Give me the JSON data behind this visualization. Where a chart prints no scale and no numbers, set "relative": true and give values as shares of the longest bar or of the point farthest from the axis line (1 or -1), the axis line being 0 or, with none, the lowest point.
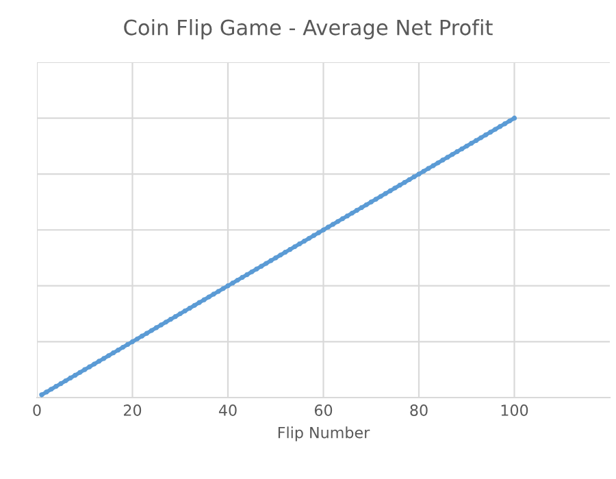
{
  "chart_data": {
    "type": "line",
    "title": "Coin Flip Game - Average Net Profit",
    "xlabel": "Flip Number",
    "relative": true,
    "tick_labels": "x",
    "x": [
      1,
      2,
      3,
      4,
      5,
      6,
      7,
      8,
      9,
      10,
      11,
      12,
      13,
      14,
      15,
      16,
      17,
      18,
      19,
      20,
      21,
      22,
      23,
      24,
      25,
      26,
      27,
      28,
      29,
      30,
      31,
      32,
      33,
      34,
      35,
      36,
      37,
      38,
      39,
      40,
      41,
      42,
      43,
      44,
      45,
      46,
      47,
      48,
      49,
      50,
      51,
      52,
      53,
      54,
      55,
      56,
      57,
      58,
      59,
      60,
      61,
      62,
      63,
      64,
      65,
      66,
      67,
      68,
      69,
      70,
      71,
      72,
      73,
      74,
      75,
      76,
      77,
      78,
      79,
      80,
      81,
      82,
      83,
      84,
      85,
      86,
      87,
      88,
      89,
      90,
      91,
      92,
      93,
      94,
      95,
      96,
      97,
      98,
      99,
      100
    ],
    "series": [
      {
        "color": "#5b9bd5",
        "values": [
          0.01,
          0.02,
          0.03,
          0.04,
          0.05,
          0.06,
          0.07,
          0.08,
          0.09,
          0.1,
          0.11,
          0.12,
          0.13,
          0.14,
          0.15,
          0.16,
          0.17,
          0.18,
          0.19,
          0.2,
          0.21,
          0.22,
          0.23,
          0.24,
          0.25,
          0.26,
          0.27,
          0.28,
          0.29,
          0.3,
          0.31,
          0.32,
          0.33,
          0.34,
          0.35,
          0.36,
          0.37,
          0.38,
          0.39,
          0.4,
          0.41,
          0.42,
          0.43,
          0.44,
          0.45,
          0.46,
          0.47,
          0.48,
          0.49,
          0.5,
          0.51,
          0.52,
          0.53,
          0.54,
          0.55,
          0.56,
          0.57,
          0.58,
          0.59,
          0.6,
          0.61,
          0.62,
          0.63,
          0.64,
          0.65,
          0.66,
          0.67,
          0.68,
          0.69,
          0.7,
          0.71,
          0.72,
          0.73,
          0.74,
          0.75,
          0.76,
          0.77,
          0.78,
          0.79,
          0.8,
          0.81,
          0.82,
          0.83,
          0.84,
          0.85,
          0.86,
          0.87,
          0.88,
          0.89,
          0.9,
          0.91,
          0.92,
          0.93,
          0.94,
          0.95,
          0.96,
          0.97,
          0.98,
          0.99,
          1.0
        ]
      }
    ],
    "xlim": [
      0,
      120
    ],
    "xticks": [
      0,
      20,
      40,
      60,
      80,
      100
    ],
    "grid": true,
    "marker": "circle",
    "line_style": "solid"
  }
}
